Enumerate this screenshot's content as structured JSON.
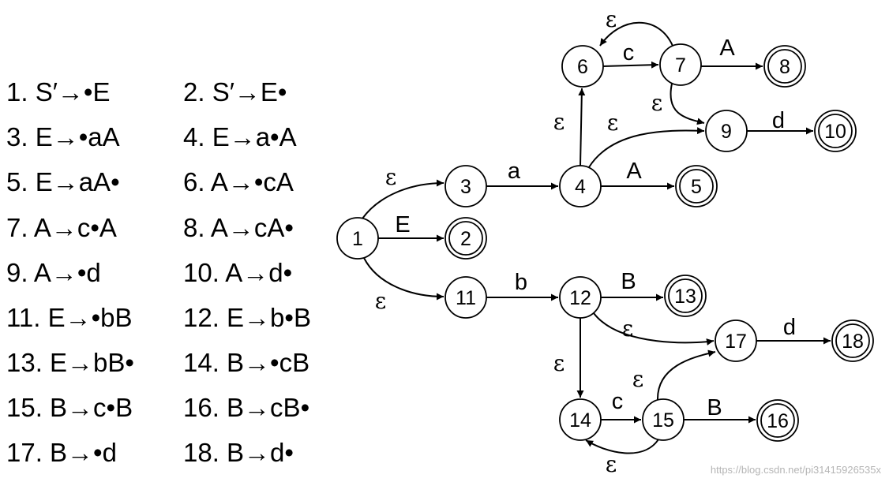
{
  "items": [
    "1. S′→•E",
    "2. S′→E•",
    "3. E→•aA",
    "4. E→a•A",
    "5. E→aA•",
    "6. A→•cA",
    "7. A→c•A",
    "8. A→cA•",
    "9. A→•d",
    "10. A→d•",
    "11. E→•bB",
    "12. E→b•B",
    "13. E→bB•",
    "14. B→•cB",
    "15. B→c•B",
    "16. B→cB•",
    "17. B→•d",
    "18. B→d•"
  ],
  "states": [
    {
      "id": "1",
      "accepting": false
    },
    {
      "id": "2",
      "accepting": true
    },
    {
      "id": "3",
      "accepting": false
    },
    {
      "id": "4",
      "accepting": false
    },
    {
      "id": "5",
      "accepting": true
    },
    {
      "id": "6",
      "accepting": false
    },
    {
      "id": "7",
      "accepting": false
    },
    {
      "id": "8",
      "accepting": true
    },
    {
      "id": "9",
      "accepting": false
    },
    {
      "id": "10",
      "accepting": true
    },
    {
      "id": "11",
      "accepting": false
    },
    {
      "id": "12",
      "accepting": false
    },
    {
      "id": "13",
      "accepting": true
    },
    {
      "id": "14",
      "accepting": false
    },
    {
      "id": "15",
      "accepting": false
    },
    {
      "id": "16",
      "accepting": true
    },
    {
      "id": "17",
      "accepting": false
    },
    {
      "id": "18",
      "accepting": true
    }
  ],
  "transitions": [
    {
      "from": "1",
      "to": "2",
      "label": "E"
    },
    {
      "from": "1",
      "to": "3",
      "label": "ε"
    },
    {
      "from": "1",
      "to": "11",
      "label": "ε"
    },
    {
      "from": "3",
      "to": "4",
      "label": "a"
    },
    {
      "from": "4",
      "to": "5",
      "label": "A"
    },
    {
      "from": "4",
      "to": "6",
      "label": "ε"
    },
    {
      "from": "4",
      "to": "9",
      "label": "ε"
    },
    {
      "from": "6",
      "to": "7",
      "label": "c"
    },
    {
      "from": "7",
      "to": "8",
      "label": "A"
    },
    {
      "from": "7",
      "to": "6",
      "label": "ε"
    },
    {
      "from": "7",
      "to": "9",
      "label": "ε"
    },
    {
      "from": "9",
      "to": "10",
      "label": "d"
    },
    {
      "from": "11",
      "to": "12",
      "label": "b"
    },
    {
      "from": "12",
      "to": "13",
      "label": "B"
    },
    {
      "from": "12",
      "to": "14",
      "label": "ε"
    },
    {
      "from": "12",
      "to": "17",
      "label": "ε"
    },
    {
      "from": "14",
      "to": "15",
      "label": "c"
    },
    {
      "from": "15",
      "to": "16",
      "label": "B"
    },
    {
      "from": "15",
      "to": "14",
      "label": "ε"
    },
    {
      "from": "15",
      "to": "17",
      "label": "ε"
    },
    {
      "from": "17",
      "to": "18",
      "label": "d"
    }
  ],
  "watermark": "https://blog.csdn.net/pi31415926535x"
}
